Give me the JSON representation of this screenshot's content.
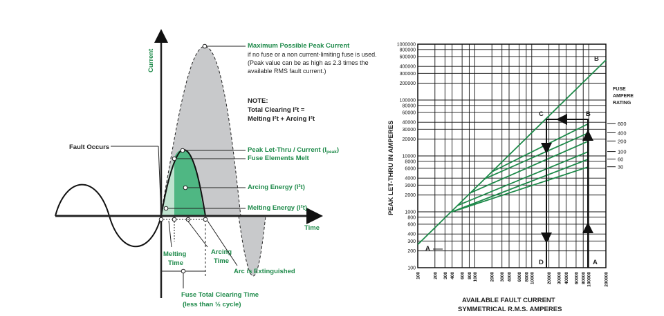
{
  "left_diagram": {
    "y_axis_label": "Current",
    "x_axis_label": "Time",
    "fault_occurs": "Fault Occurs",
    "max_peak_title": "Maximum Possible Peak Current",
    "max_peak_line1": "if no fuse or a non current-limiting fuse is used.",
    "max_peak_line2": "(Peak value can be as high as 2.3 times the",
    "max_peak_line3": "available RMS fault current.)",
    "note_title": "NOTE:",
    "note_line1": "Total Clearing I²t =",
    "note_line2": "Melting I²t + Arcing I²t",
    "peak_let_thru": "Peak Let-Thru / Current (I",
    "peak_sub": "peak",
    "peak_close": ")",
    "elements_melt": "Fuse Elements Melt",
    "arcing_energy": "Arcing Energy (I²t)",
    "melting_energy": "Melting Energy (I²t)",
    "melting_time_1": "Melting",
    "melting_time_2": "Time",
    "arcing_time_1": "Arcing",
    "arcing_time_2": "Time",
    "arc_extinguished": "Arc is Extinguished",
    "clearing_time_1": "Fuse Total Clearing Time",
    "clearing_time_2": "(less than ½ cycle)"
  },
  "right_chart": {
    "y_axis_label": "PEAK LET-THRU IN AMPERES",
    "x_axis_label_1": "AVAILABLE FAULT CURRENT",
    "x_axis_label_2": "SYMMETRICAL R.M.S. AMPERES",
    "legend_title_1": "FUSE",
    "legend_title_2": "AMPERE",
    "legend_title_3": "RATING",
    "point_labels": [
      "A",
      "B",
      "C",
      "B",
      "D",
      "A"
    ]
  },
  "chart_data": {
    "type": "line",
    "x_scale": "log",
    "y_scale": "log",
    "xlim": [
      100,
      200000
    ],
    "ylim": [
      100,
      1000000
    ],
    "x_ticks": [
      "100",
      "200",
      "300",
      "400",
      "600",
      "800",
      "1000",
      "2000",
      "3000",
      "4000",
      "6000",
      "8000",
      "10000",
      "20000",
      "30000",
      "40000",
      "60000",
      "80000",
      "100000",
      "200000"
    ],
    "y_ticks": [
      "100",
      "200",
      "300",
      "400",
      "600",
      "800",
      "1000",
      "2000",
      "3000",
      "4000",
      "6000",
      "8000",
      "10000",
      "20000",
      "30000",
      "40000",
      "60000",
      "80000",
      "100000",
      "200000",
      "300000",
      "400000",
      "600000",
      "800000",
      "1000000"
    ],
    "series": [
      {
        "name": "A-B",
        "x": [
          100,
          200000
        ],
        "y": [
          260,
          520000
        ]
      },
      {
        "name": "600",
        "x": [
          2000,
          100000
        ],
        "y": [
          5200,
          38000
        ]
      },
      {
        "name": "400",
        "x": [
          1500,
          100000
        ],
        "y": [
          3900,
          26000
        ]
      },
      {
        "name": "200",
        "x": [
          850,
          100000
        ],
        "y": [
          2200,
          18500
        ]
      },
      {
        "name": "100",
        "x": [
          500,
          100000
        ],
        "y": [
          1300,
          12000
        ]
      },
      {
        "name": "60",
        "x": [
          400,
          100000
        ],
        "y": [
          1000,
          8800
        ]
      },
      {
        "name": "30",
        "x": [
          400,
          100000
        ],
        "y": [
          1000,
          6400
        ]
      }
    ],
    "legend_ratings": [
      "600",
      "400",
      "200",
      "100",
      "60",
      "30"
    ],
    "grid": true
  }
}
